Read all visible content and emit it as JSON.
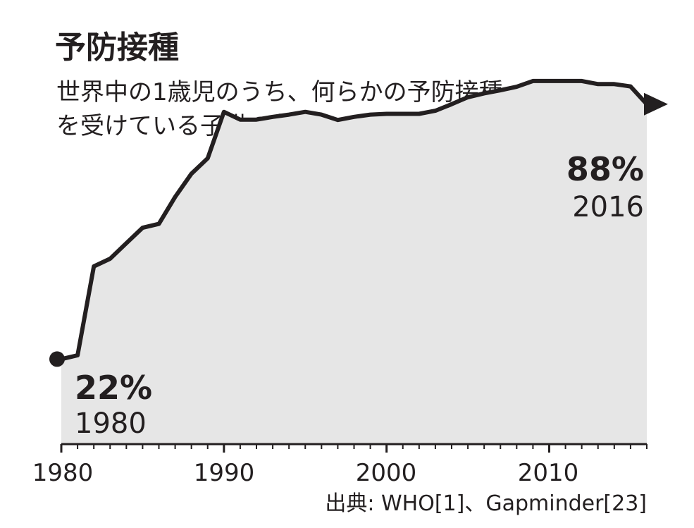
{
  "chart_data": {
    "type": "area",
    "title": "予防接種",
    "subtitle_lines": [
      "世界中の1歳児のうち、何らかの予防接種",
      "を受けている子供の割合"
    ],
    "x": [
      1980,
      1981,
      1982,
      1983,
      1984,
      1985,
      1986,
      1987,
      1988,
      1989,
      1990,
      1991,
      1992,
      1993,
      1994,
      1995,
      1996,
      1997,
      1998,
      1999,
      2000,
      2001,
      2002,
      2003,
      2004,
      2005,
      2006,
      2007,
      2008,
      2009,
      2010,
      2011,
      2012,
      2013,
      2014,
      2015,
      2016
    ],
    "values": [
      22,
      23,
      46,
      48,
      52,
      56,
      57,
      64,
      70,
      74,
      86,
      84,
      84,
      84.7,
      85.3,
      86,
      85.3,
      83.9,
      84.7,
      85.3,
      85.5,
      85.5,
      85.5,
      86.3,
      88,
      89.8,
      90.8,
      91.6,
      92.5,
      94,
      94,
      94,
      94,
      93.2,
      93.2,
      92.6,
      88
    ],
    "x_ticks": [
      "1980",
      "1990",
      "2000",
      "2010"
    ],
    "xlim": [
      1980,
      2016
    ],
    "start_label": {
      "value": "22%",
      "year": "1980"
    },
    "end_label": {
      "value": "88%",
      "year": "2016"
    },
    "source": "出典: WHO[1]、Gapminder[23]",
    "colors": {
      "fill": "#e6e6e6",
      "line": "#231f20"
    }
  }
}
